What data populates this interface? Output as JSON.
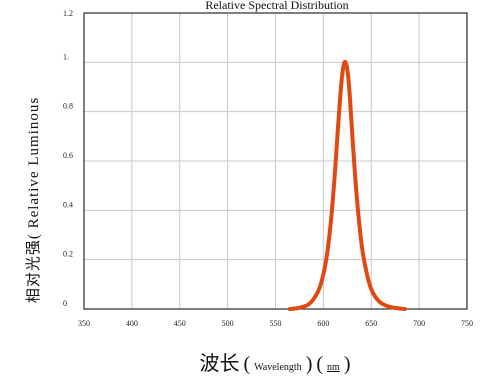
{
  "chart_data": {
    "type": "line",
    "title": "Relative Spectral Distribution",
    "xlabel": {
      "cjk": "波长",
      "open1": "(",
      "wavelength": "Wavelength",
      "close1": ")",
      "open2": "(",
      "unit": "nm",
      "close2": ")"
    },
    "ylabel": "相对光强( Relative Luminous",
    "xlim": [
      350,
      750
    ],
    "ylim": [
      0,
      1.2
    ],
    "x_ticks": [
      {
        "value": 350,
        "label": "350"
      },
      {
        "value": 400,
        "label": "400"
      },
      {
        "value": 450,
        "label": "450"
      },
      {
        "value": 500,
        "label": "500"
      },
      {
        "value": 550,
        "label": "550"
      },
      {
        "value": 600,
        "label": "600"
      },
      {
        "value": 650,
        "label": "650"
      },
      {
        "value": 700,
        "label": "700"
      },
      {
        "value": 750,
        "label": "750"
      }
    ],
    "y_ticks": [
      {
        "value": 0,
        "label": "0"
      },
      {
        "value": 0.2,
        "label": "0.2"
      },
      {
        "value": 0.4,
        "label": "0.4"
      },
      {
        "value": 0.6,
        "label": "0.6"
      },
      {
        "value": 0.8,
        "label": "0.8"
      },
      {
        "value": 1.0,
        "label": "1."
      },
      {
        "value": 1.2,
        "label": "1.2"
      }
    ],
    "grid": true,
    "line_color": "#e04a12",
    "series": [
      {
        "x": [
          565,
          575,
          585,
          593,
          598,
          603,
          608,
          612,
          615,
          618,
          620,
          622,
          624,
          626,
          628,
          631,
          635,
          640,
          645,
          650,
          656,
          662,
          670,
          680,
          685
        ],
        "y": [
          0.0,
          0.005,
          0.02,
          0.06,
          0.11,
          0.2,
          0.36,
          0.55,
          0.72,
          0.88,
          0.96,
          1.0,
          0.99,
          0.94,
          0.84,
          0.66,
          0.45,
          0.26,
          0.15,
          0.08,
          0.04,
          0.02,
          0.008,
          0.002,
          0.0
        ]
      }
    ]
  }
}
